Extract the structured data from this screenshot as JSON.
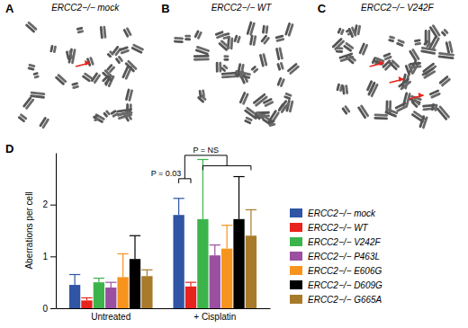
{
  "panels": [
    {
      "letter": "A",
      "title": "ERCC2−/− mock"
    },
    {
      "letter": "B",
      "title": "ERCC2−/− WT"
    },
    {
      "letter": "C",
      "title": "ERCC2−/− V242F"
    }
  ],
  "chart_data": {
    "type": "bar",
    "letter": "D",
    "y_label": "Aberrations per cell",
    "categories": [
      "Untreated",
      "+ Cisplatin"
    ],
    "ylim": [
      0,
      3
    ],
    "yticks": [
      0,
      1,
      2
    ],
    "annotations": [
      "P = 0.03",
      "P = NS"
    ],
    "series": [
      {
        "name": "ERCC2−/− mock",
        "color": "#2f55a4",
        "values": [
          0.45,
          1.8
        ],
        "errors": [
          0.2,
          0.32
        ]
      },
      {
        "name": "ERCC2−/− WT",
        "color": "#e8221c",
        "values": [
          0.15,
          0.42
        ],
        "errors": [
          0.05,
          0.08
        ]
      },
      {
        "name": "ERCC2−/− V242F",
        "color": "#3cb44b",
        "values": [
          0.5,
          1.72
        ],
        "errors": [
          0.08,
          1.15
        ]
      },
      {
        "name": "ERCC2−/− P463L",
        "color": "#9a4fa0",
        "values": [
          0.4,
          1.02
        ],
        "errors": [
          0.1,
          0.2
        ]
      },
      {
        "name": "ERCC2−/− E606G",
        "color": "#f7941d",
        "values": [
          0.6,
          1.15
        ],
        "errors": [
          0.45,
          0.45
        ]
      },
      {
        "name": "ERCC2−/− D609G",
        "color": "#000000",
        "values": [
          0.95,
          1.72
        ],
        "errors": [
          0.45,
          0.82
        ]
      },
      {
        "name": "ERCC2−/− G665A",
        "color": "#a87b2b",
        "values": [
          0.62,
          1.4
        ],
        "errors": [
          0.12,
          0.5
        ]
      }
    ]
  }
}
